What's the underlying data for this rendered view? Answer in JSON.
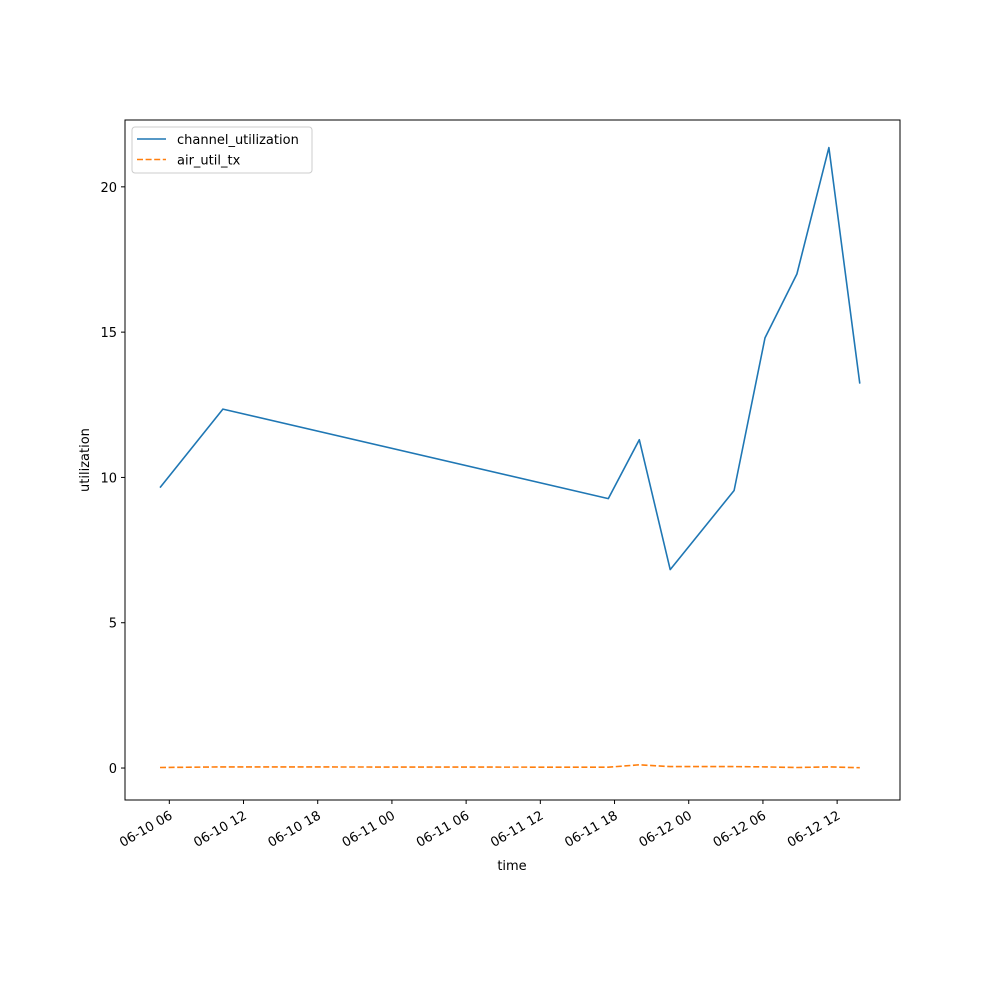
{
  "chart_data": {
    "type": "line",
    "title": "",
    "xlabel": "time",
    "ylabel": "utilization",
    "x": [
      "2023-06-10 05:15",
      "2023-06-10 10:20",
      "2023-06-11 17:30",
      "2023-06-11 20:00",
      "2023-06-11 22:30",
      "2023-06-12 03:40",
      "2023-06-12 06:10",
      "2023-06-12 08:45",
      "2023-06-12 11:20",
      "2023-06-12 13:50"
    ],
    "xlim": [
      "2023-06-10 02:25",
      "2023-06-12 17:05"
    ],
    "x_ticks": [
      "06-10 06",
      "06-10 12",
      "06-10 18",
      "06-11 00",
      "06-11 06",
      "06-11 12",
      "06-11 18",
      "06-12 00",
      "06-12 06",
      "06-12 12"
    ],
    "x_tick_values": [
      "2023-06-10 06:00",
      "2023-06-10 12:00",
      "2023-06-10 18:00",
      "2023-06-11 00:00",
      "2023-06-11 06:00",
      "2023-06-11 12:00",
      "2023-06-11 18:00",
      "2023-06-12 00:00",
      "2023-06-12 06:00",
      "2023-06-12 12:00"
    ],
    "ylim": [
      -1.1,
      22.3
    ],
    "y_ticks": [
      0,
      5,
      10,
      15,
      20
    ],
    "legend_position": "upper-left",
    "grid": false,
    "series": [
      {
        "name": "channel_utilization",
        "color": "#1f77b4",
        "style": "solid",
        "values": [
          9.65,
          12.35,
          9.27,
          11.3,
          6.83,
          9.55,
          14.8,
          17.0,
          21.35,
          13.23
        ]
      },
      {
        "name": "air_util_tx",
        "color": "#ff7f0e",
        "style": "dashed",
        "values": [
          0.02,
          0.04,
          0.03,
          0.11,
          0.05,
          0.05,
          0.04,
          0.02,
          0.04,
          0.01
        ]
      }
    ]
  }
}
